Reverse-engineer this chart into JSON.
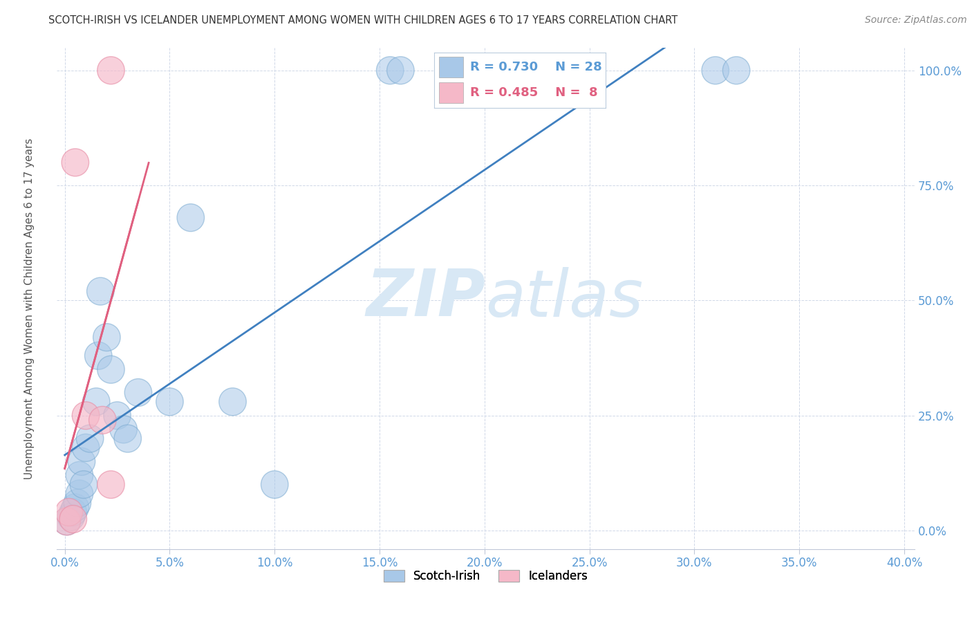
{
  "title": "SCOTCH-IRISH VS ICELANDER UNEMPLOYMENT AMONG WOMEN WITH CHILDREN AGES 6 TO 17 YEARS CORRELATION CHART",
  "source": "Source: ZipAtlas.com",
  "ylabel_label": "Unemployment Among Women with Children Ages 6 to 17 years",
  "legend_scotch_irish": "Scotch-Irish",
  "legend_icelanders": "Icelanders",
  "R_scotch": 0.73,
  "N_scotch": 28,
  "R_icel": 0.485,
  "N_icel": 8,
  "scotch_color": "#a8c8e8",
  "icel_color": "#f5b8c8",
  "scotch_edge_color": "#7aaad0",
  "icel_edge_color": "#e890a8",
  "regression_scotch_color": "#4080c0",
  "regression_icel_color": "#e06080",
  "watermark_color": "#d8e8f5",
  "tick_color": "#5b9bd5",
  "grid_color": "#d0d8e8",
  "scotch_x": [
    0.001,
    0.003,
    0.004,
    0.005,
    0.006,
    0.007,
    0.007,
    0.008,
    0.009,
    0.01,
    0.012,
    0.015,
    0.016,
    0.017,
    0.02,
    0.022,
    0.025,
    0.028,
    0.03,
    0.035,
    0.05,
    0.06,
    0.08,
    0.1,
    0.155,
    0.16,
    0.31,
    0.32
  ],
  "scotch_y": [
    0.02,
    0.03,
    0.04,
    0.05,
    0.06,
    0.08,
    0.12,
    0.15,
    0.1,
    0.18,
    0.2,
    0.28,
    0.38,
    0.52,
    0.42,
    0.35,
    0.25,
    0.22,
    0.2,
    0.3,
    0.28,
    0.68,
    0.28,
    0.1,
    1.0,
    1.0,
    1.0,
    1.0
  ],
  "icel_x": [
    0.001,
    0.002,
    0.004,
    0.005,
    0.01,
    0.018,
    0.022,
    0.022
  ],
  "icel_y": [
    0.02,
    0.04,
    0.025,
    0.8,
    0.25,
    0.24,
    0.1,
    1.0
  ],
  "xlim": [
    0,
    0.4
  ],
  "ylim": [
    0,
    1.05
  ],
  "xticks": [
    0.0,
    0.05,
    0.1,
    0.15,
    0.2,
    0.25,
    0.3,
    0.35,
    0.4
  ],
  "yticks": [
    0.0,
    0.25,
    0.5,
    0.75,
    1.0
  ],
  "xtick_labels": [
    "0.0%",
    "5.0%",
    "10.0%",
    "15.0%",
    "20.0%",
    "25.0%",
    "30.0%",
    "35.0%",
    "40.0%"
  ],
  "ytick_labels": [
    "0.0%",
    "25.0%",
    "50.0%",
    "75.0%",
    "100.0%"
  ]
}
